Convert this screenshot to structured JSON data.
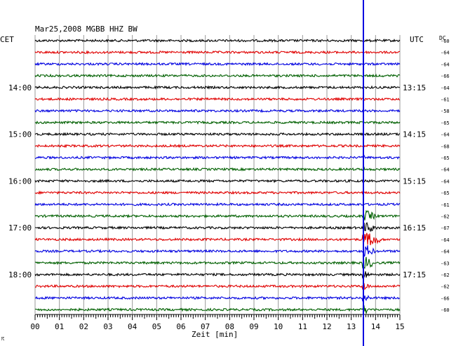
{
  "chart_data": {
    "type": "line",
    "title": "Mar25,2008   MGBB HHZ BW",
    "left_timezone_label": "CET",
    "right_timezone_label": "UTC",
    "dc_label": "DC",
    "xlabel": "Zeit [min]",
    "x_ticks": [
      "00",
      "01",
      "02",
      "03",
      "04",
      "05",
      "06",
      "07",
      "08",
      "09",
      "10",
      "11",
      "12",
      "13",
      "14",
      "15"
    ],
    "xlim": [
      0,
      15
    ],
    "left_hour_labels": [
      "14:00",
      "15:00",
      "16:00",
      "17:00",
      "18:00"
    ],
    "right_hour_labels": [
      "13:15",
      "14:15",
      "15:15",
      "16:15",
      "17:15"
    ],
    "row_colors": [
      "#000000",
      "#e00000",
      "#0000e0",
      "#006000"
    ],
    "rows_per_hour": 4,
    "row_count": 24,
    "dc_offsets": [
      -60,
      -64,
      -64,
      -66,
      -64,
      -61,
      -58,
      -65,
      -64,
      -68,
      -65,
      -64,
      -64,
      -65,
      -61,
      -62,
      -67,
      -64,
      -64,
      -63,
      -62,
      -62,
      -66,
      -60
    ],
    "event_marker": {
      "minute": 13.5,
      "color": "#0000e0"
    },
    "footer_mark": "☈"
  }
}
